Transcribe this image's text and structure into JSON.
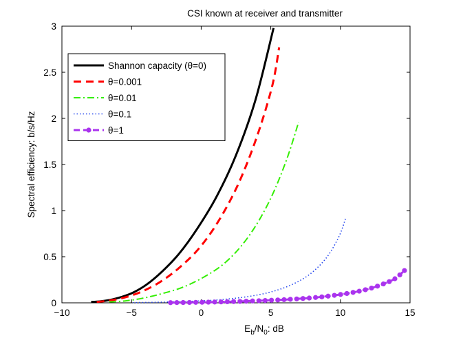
{
  "chart_data": {
    "type": "line",
    "title": "CSI known at receiver and transmitter",
    "xlabel": {
      "main": "E",
      "sub1": "b",
      "mid": "/N",
      "sub2": "0",
      "tail": ": dB"
    },
    "ylabel": "Spectral efficiency: b/s/Hz",
    "xlim": [
      -10,
      15
    ],
    "ylim": [
      0,
      3
    ],
    "xticks": [
      -10,
      -5,
      0,
      5,
      10,
      15
    ],
    "yticks": [
      0,
      0.5,
      1,
      1.5,
      2,
      2.5,
      3
    ],
    "ytick_labels": [
      "0",
      "0.5",
      "1",
      "1.5",
      "2",
      "2.5",
      "3"
    ],
    "grid": false,
    "legend_position": "top-left",
    "series": [
      {
        "name": "Shannon capacity (θ=0)",
        "color": "#000000",
        "style": "solid",
        "x": [
          -7.9,
          -7.3,
          -6.6,
          -5.8,
          -4.9,
          -3.9,
          -2.8,
          -1.6,
          -0.3,
          1.1,
          2.5,
          3.9,
          5.2
        ],
        "y": [
          0.01,
          0.015,
          0.03,
          0.06,
          0.11,
          0.2,
          0.34,
          0.53,
          0.8,
          1.15,
          1.6,
          2.2,
          2.98
        ]
      },
      {
        "name": "θ=0.001",
        "color": "#ff0000",
        "style": "dashed",
        "x": [
          -7.5,
          -6.8,
          -6.0,
          -5.0,
          -4.0,
          -2.8,
          -1.5,
          -0.1,
          1.3,
          2.7,
          4.0,
          5.1,
          5.6
        ],
        "y": [
          0.01,
          0.02,
          0.04,
          0.08,
          0.14,
          0.24,
          0.39,
          0.6,
          0.9,
          1.3,
          1.8,
          2.35,
          2.77
        ]
      },
      {
        "name": "θ=0.01",
        "color": "#33ee00",
        "style": "dashdot",
        "x": [
          -6.6,
          -5.5,
          -4.2,
          -2.8,
          -1.3,
          0.2,
          1.6,
          2.9,
          4.1,
          5.2,
          6.2,
          7.0
        ],
        "y": [
          0.01,
          0.02,
          0.05,
          0.1,
          0.17,
          0.28,
          0.42,
          0.62,
          0.88,
          1.2,
          1.58,
          1.96
        ]
      },
      {
        "name": "θ=0.1",
        "color": "#2244ee",
        "style": "dotted",
        "x": [
          -4.9,
          -3.0,
          -1.0,
          1.0,
          3.0,
          4.8,
          6.4,
          7.8,
          9.0,
          9.9,
          10.4
        ],
        "y": [
          0.002,
          0.007,
          0.015,
          0.03,
          0.06,
          0.11,
          0.19,
          0.31,
          0.49,
          0.72,
          0.93
        ]
      },
      {
        "name": "θ=1",
        "color": "#aa33ee",
        "style": "marker",
        "x": [
          -2.2,
          0.0,
          2.0,
          4.0,
          6.0,
          8.0,
          9.5,
          10.8,
          12.0,
          13.0,
          13.9,
          14.6
        ],
        "y": [
          0.002,
          0.006,
          0.012,
          0.022,
          0.035,
          0.055,
          0.08,
          0.11,
          0.15,
          0.2,
          0.26,
          0.35
        ]
      }
    ]
  }
}
